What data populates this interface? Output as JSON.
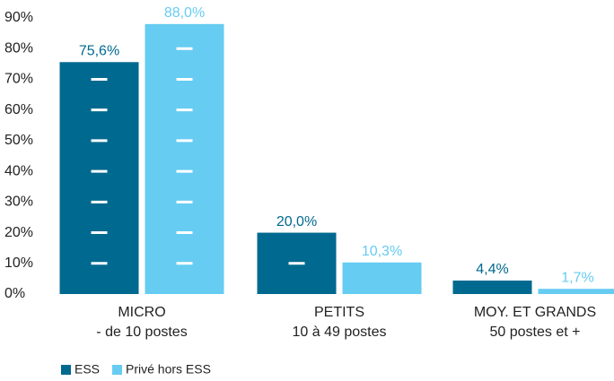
{
  "chart_data": {
    "type": "bar",
    "categories": [
      "MICRO\n- de 10 postes",
      "PETITS\n10 à 49 postes",
      "MOY. ET GRANDS\n50 postes et +"
    ],
    "series": [
      {
        "name": "ESS",
        "color": "#00698f",
        "values": [
          75.6,
          20.0,
          4.4
        ],
        "value_labels": [
          "75,6%",
          "20,0%",
          "4,4%"
        ]
      },
      {
        "name": "Privé hors ESS",
        "color": "#66ccf2",
        "values": [
          88.0,
          10.3,
          1.7
        ],
        "value_labels": [
          "88,0%",
          "10,3%",
          "1,7%"
        ]
      }
    ],
    "ylim": [
      0,
      90
    ],
    "yticks": [
      {
        "value": 0,
        "label": "0%"
      },
      {
        "value": 10,
        "label": "10%"
      },
      {
        "value": 20,
        "label": "20%"
      },
      {
        "value": 30,
        "label": "30%"
      },
      {
        "value": 40,
        "label": "40%"
      },
      {
        "value": 50,
        "label": "50%"
      },
      {
        "value": 60,
        "label": "60%"
      },
      {
        "value": 70,
        "label": "70%"
      },
      {
        "value": 80,
        "label": "80%"
      },
      {
        "value": 90,
        "label": "90%"
      }
    ],
    "legend": "bottom-left"
  }
}
